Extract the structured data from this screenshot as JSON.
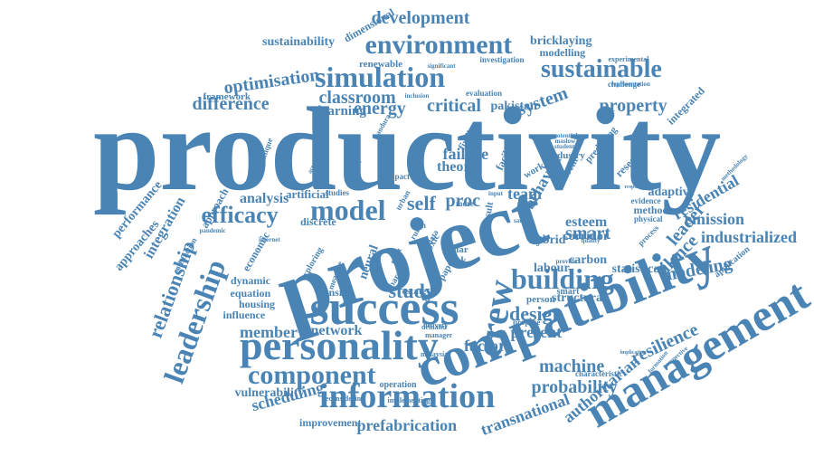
{
  "colors": {
    "word": "#4a84b4",
    "background": "#ffffff"
  },
  "words": [
    {
      "text": "productivity",
      "weight": 1.0
    },
    {
      "text": "project",
      "weight": 0.9
    },
    {
      "text": "compatibility",
      "weight": 0.75
    },
    {
      "text": "management",
      "weight": 0.7
    },
    {
      "text": "success",
      "weight": 0.65
    },
    {
      "text": "personality",
      "weight": 0.6
    },
    {
      "text": "information",
      "weight": 0.5
    },
    {
      "text": "environment",
      "weight": 0.42
    },
    {
      "text": "simulation",
      "weight": 0.42
    },
    {
      "text": "sustainable",
      "weight": 0.38
    },
    {
      "text": "leadership",
      "weight": 0.4
    },
    {
      "text": "building",
      "weight": 0.4
    },
    {
      "text": "model",
      "weight": 0.38
    },
    {
      "text": "component",
      "weight": 0.38
    },
    {
      "text": "efficacy",
      "weight": 0.36
    },
    {
      "text": "crew",
      "weight": 0.4
    },
    {
      "text": "relationship",
      "weight": 0.3
    },
    {
      "text": "development",
      "weight": 0.28
    },
    {
      "text": "optimisation",
      "weight": 0.26
    },
    {
      "text": "classroom",
      "weight": 0.26
    },
    {
      "text": "difference",
      "weight": 0.26
    },
    {
      "text": "critical",
      "weight": 0.24
    },
    {
      "text": "energy",
      "weight": 0.24
    },
    {
      "text": "system",
      "weight": 0.24
    },
    {
      "text": "property",
      "weight": 0.24
    },
    {
      "text": "self",
      "weight": 0.26
    },
    {
      "text": "study",
      "weight": 0.24
    },
    {
      "text": "design",
      "weight": 0.24
    },
    {
      "text": "probability",
      "weight": 0.24
    },
    {
      "text": "machine",
      "weight": 0.22
    },
    {
      "text": "resilience",
      "weight": 0.24
    },
    {
      "text": "modeling",
      "weight": 0.22
    },
    {
      "text": "industrialized",
      "weight": 0.22
    },
    {
      "text": "smart",
      "weight": 0.24
    },
    {
      "text": "leader",
      "weight": 0.22
    },
    {
      "text": "silence",
      "weight": 0.22
    },
    {
      "text": "emission",
      "weight": 0.2
    },
    {
      "text": "residential",
      "weight": 0.2
    },
    {
      "text": "prefabrication",
      "weight": 0.22
    },
    {
      "text": "transnational",
      "weight": 0.22
    },
    {
      "text": "authoritarian",
      "weight": 0.2
    },
    {
      "text": "factor",
      "weight": 0.22
    },
    {
      "text": "present",
      "weight": 0.2
    },
    {
      "text": "member",
      "weight": 0.22
    },
    {
      "text": "network",
      "weight": 0.2
    },
    {
      "text": "scheduling",
      "weight": 0.22
    },
    {
      "text": "vulnerability",
      "weight": 0.18
    },
    {
      "text": "improvement",
      "weight": 0.16
    },
    {
      "text": "failure",
      "weight": 0.2
    },
    {
      "text": "theory",
      "weight": 0.2
    },
    {
      "text": "proc",
      "weight": 0.2
    },
    {
      "text": "team",
      "weight": 0.2
    },
    {
      "text": "behavior",
      "weight": 0.2
    },
    {
      "text": "esteem",
      "weight": 0.2
    },
    {
      "text": "corridor",
      "weight": 0.18
    },
    {
      "text": "carbon",
      "weight": 0.18
    },
    {
      "text": "labour",
      "weight": 0.18
    },
    {
      "text": "statistical",
      "weight": 0.18
    },
    {
      "text": "structural",
      "weight": 0.18
    },
    {
      "text": "adaptive",
      "weight": 0.18
    },
    {
      "text": "method",
      "weight": 0.16
    },
    {
      "text": "analysis",
      "weight": 0.18
    },
    {
      "text": "artificial",
      "weight": 0.16
    },
    {
      "text": "discrete",
      "weight": 0.16
    },
    {
      "text": "density",
      "weight": 0.16
    },
    {
      "text": "housing",
      "weight": 0.16
    },
    {
      "text": "equation",
      "weight": 0.16
    },
    {
      "text": "dynamic",
      "weight": 0.16
    },
    {
      "text": "influence",
      "weight": 0.16
    },
    {
      "text": "integration",
      "weight": 0.18
    },
    {
      "text": "performance",
      "weight": 0.16
    },
    {
      "text": "approaches",
      "weight": 0.16
    },
    {
      "text": "approach",
      "weight": 0.16
    },
    {
      "text": "sustainability",
      "weight": 0.16
    },
    {
      "text": "bricklaying",
      "weight": 0.16
    },
    {
      "text": "modelling",
      "weight": 0.14
    },
    {
      "text": "renewable",
      "weight": 0.14
    },
    {
      "text": "framework",
      "weight": 0.14
    },
    {
      "text": "learning",
      "weight": 0.16
    },
    {
      "text": "pakistan",
      "weight": 0.16
    },
    {
      "text": "integrated",
      "weight": 0.16
    },
    {
      "text": "hybrid",
      "weight": 0.16
    },
    {
      "text": "research",
      "weight": 0.16
    },
    {
      "text": "operation",
      "weight": 0.14
    },
    {
      "text": "dimensional",
      "weight": 0.14
    },
    {
      "text": "investigation",
      "weight": 0.12
    },
    {
      "text": "challenge",
      "weight": 0.12
    },
    {
      "text": "evaluation",
      "weight": 0.12
    },
    {
      "text": "application",
      "weight": 0.14
    },
    {
      "text": "economic",
      "weight": 0.14
    },
    {
      "text": "exploring",
      "weight": 0.12
    },
    {
      "text": "neural",
      "weight": 0.14
    },
    {
      "text": "smart",
      "weight": 0.1
    },
    {
      "text": "reconsidering",
      "weight": 0.1
    },
    {
      "text": "implementing",
      "weight": 0.1
    },
    {
      "text": "delivery",
      "weight": 0.1
    },
    {
      "text": "manager",
      "weight": 0.1
    },
    {
      "text": "demand",
      "weight": 0.1
    },
    {
      "text": "malaysia",
      "weight": 0.1
    },
    {
      "text": "person",
      "weight": 0.12
    },
    {
      "text": "propose",
      "weight": 0.1
    },
    {
      "text": "characteristic",
      "weight": 0.1
    },
    {
      "text": "experimental",
      "weight": 0.1
    },
    {
      "text": "representation",
      "weight": 0.08
    },
    {
      "text": "estate",
      "weight": 0.12
    },
    {
      "text": "paper",
      "weight": 0.12
    },
    {
      "text": "task",
      "weight": 0.12
    },
    {
      "text": "solar",
      "weight": 0.12
    },
    {
      "text": "toxic",
      "weight": 0.12
    },
    {
      "text": "result",
      "weight": 0.12
    },
    {
      "text": "finding",
      "weight": 0.12
    },
    {
      "text": "impact",
      "weight": 0.1
    },
    {
      "text": "facilities",
      "weight": 0.12
    },
    {
      "text": "industry",
      "weight": 0.12
    },
    {
      "text": "worker",
      "weight": 0.12
    },
    {
      "text": "current",
      "weight": 0.12
    },
    {
      "text": "predicting",
      "weight": 0.12
    },
    {
      "text": "physical",
      "weight": 0.1
    },
    {
      "text": "process",
      "weight": 0.1
    },
    {
      "text": "evidence",
      "weight": 0.1
    },
    {
      "text": "quality",
      "weight": 0.08
    },
    {
      "text": "student",
      "weight": 0.08
    },
    {
      "text": "maslow",
      "weight": 0.08
    },
    {
      "text": "potential",
      "weight": 0.08
    },
    {
      "text": "satisfaction",
      "weight": 0.1
    },
    {
      "text": "pandemic",
      "weight": 0.08
    },
    {
      "text": "technique",
      "weight": 0.1
    },
    {
      "text": "studies",
      "weight": 0.1
    },
    {
      "text": "tech",
      "weight": 0.1
    },
    {
      "text": "urban",
      "weight": 0.1
    },
    {
      "text": "more",
      "weight": 0.1
    },
    {
      "text": "safety",
      "weight": 0.08
    },
    {
      "text": "barrier",
      "weight": 0.1
    },
    {
      "text": "significant",
      "weight": 0.08
    },
    {
      "text": "inclusion",
      "weight": 0.08
    },
    {
      "text": "internet",
      "weight": 0.08
    },
    {
      "text": "measure",
      "weight": 0.1
    },
    {
      "text": "event",
      "weight": 0.08
    },
    {
      "text": "rural",
      "weight": 0.1
    },
    {
      "text": "data",
      "weight": 0.1
    },
    {
      "text": "input",
      "weight": 0.08
    },
    {
      "text": "provide",
      "weight": 0.08
    },
    {
      "text": "methodology",
      "weight": 0.08
    },
    {
      "text": "formation",
      "weight": 0.08
    },
    {
      "text": "perspective",
      "weight": 0.08
    },
    {
      "text": "implication",
      "weight": 0.08
    },
    {
      "text": "responsibility",
      "weight": 0.08
    },
    {
      "text": "bandura",
      "weight": 0.08
    },
    {
      "text": "actuator",
      "weight": 0.08
    },
    {
      "text": "science",
      "weight": 0.08
    }
  ]
}
